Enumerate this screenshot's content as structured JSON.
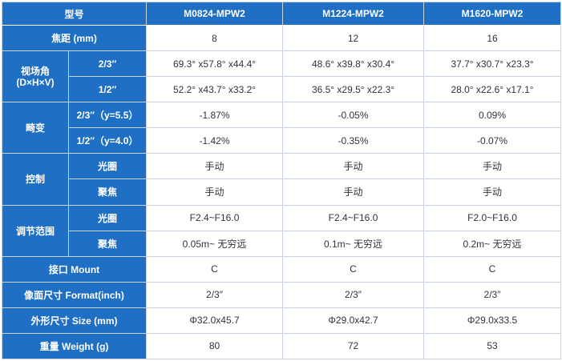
{
  "header": {
    "model_label": "型号",
    "models": [
      "M0824-MPW2",
      "M1224-MPW2",
      "M1620-MPW2"
    ]
  },
  "focal": {
    "label": "焦距 (mm)",
    "values": [
      "8",
      "12",
      "16"
    ]
  },
  "fov": {
    "label": "视场角\n(D×H×V)",
    "rows": [
      {
        "sub": "2/3″",
        "values": [
          "69.3° x57.8° x44.4°",
          "48.6° x39.8° x30.4°",
          "37.7° x30.7° x23.3°"
        ]
      },
      {
        "sub": "1/2″",
        "values": [
          "52.2° x43.7° x33.2°",
          "36.5° x29.5° x22.3°",
          "28.0° x22.6° x17.1°"
        ]
      }
    ]
  },
  "distortion": {
    "label": "畸变",
    "rows": [
      {
        "sub": "2/3″（y=5.5）",
        "values": [
          "-1.87%",
          "-0.05%",
          "0.09%"
        ]
      },
      {
        "sub": "1/2″（y=4.0）",
        "values": [
          "-1.42%",
          "-0.35%",
          "-0.07%"
        ]
      }
    ]
  },
  "control": {
    "label": "控制",
    "rows": [
      {
        "sub": "光圈",
        "values": [
          "手动",
          "手动",
          "手动"
        ]
      },
      {
        "sub": "聚焦",
        "values": [
          "手动",
          "手动",
          "手动"
        ]
      }
    ]
  },
  "range": {
    "label": "调节范围",
    "rows": [
      {
        "sub": "光圈",
        "values": [
          "F2.4~F16.0",
          "F2.4~F16.0",
          "F2.0~F16.0"
        ]
      },
      {
        "sub": "聚焦",
        "values": [
          "0.05m~ 无穷远",
          "0.1m~ 无穷远",
          "0.2m~ 无穷远"
        ]
      }
    ]
  },
  "mount": {
    "label": "接口 Mount",
    "values": [
      "C",
      "C",
      "C"
    ]
  },
  "format": {
    "label": "像面尺寸 Format(inch)",
    "values": [
      "2/3″",
      "2/3″",
      "2/3″"
    ]
  },
  "size": {
    "label": "外形尺寸 Size (mm)",
    "values": [
      "Φ32.0x45.7",
      "Φ29.0x42.7",
      "Φ29.0x33.5"
    ]
  },
  "weight": {
    "label": "重量 Weight (g)",
    "values": [
      "80",
      "72",
      "53"
    ]
  }
}
